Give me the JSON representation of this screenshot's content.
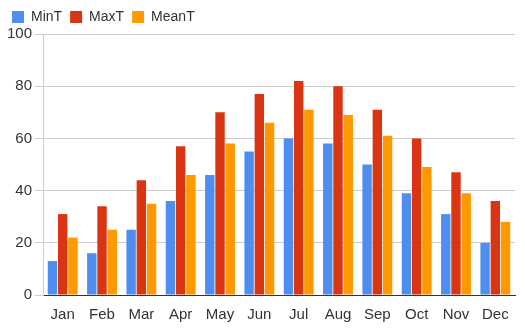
{
  "chart_data": {
    "type": "bar",
    "categories": [
      "Jan",
      "Feb",
      "Mar",
      "Apr",
      "May",
      "Jun",
      "Jul",
      "Aug",
      "Sep",
      "Oct",
      "Nov",
      "Dec"
    ],
    "series": [
      {
        "name": "MinT",
        "color": "#4d8ef0",
        "values": [
          13,
          16,
          25,
          36,
          46,
          55,
          60,
          58,
          50,
          39,
          31,
          20
        ]
      },
      {
        "name": "MaxT",
        "color": "#d93512",
        "values": [
          31,
          34,
          44,
          57,
          70,
          77,
          82,
          80,
          71,
          60,
          47,
          36
        ]
      },
      {
        "name": "MeanT",
        "color": "#ff9900",
        "values": [
          22,
          25,
          35,
          46,
          58,
          66,
          71,
          69,
          61,
          49,
          39,
          28
        ]
      }
    ],
    "ylim": [
      0,
      100
    ],
    "yticks": [
      0,
      20,
      40,
      60,
      80,
      100
    ],
    "grid": true,
    "legend": "top-left"
  }
}
